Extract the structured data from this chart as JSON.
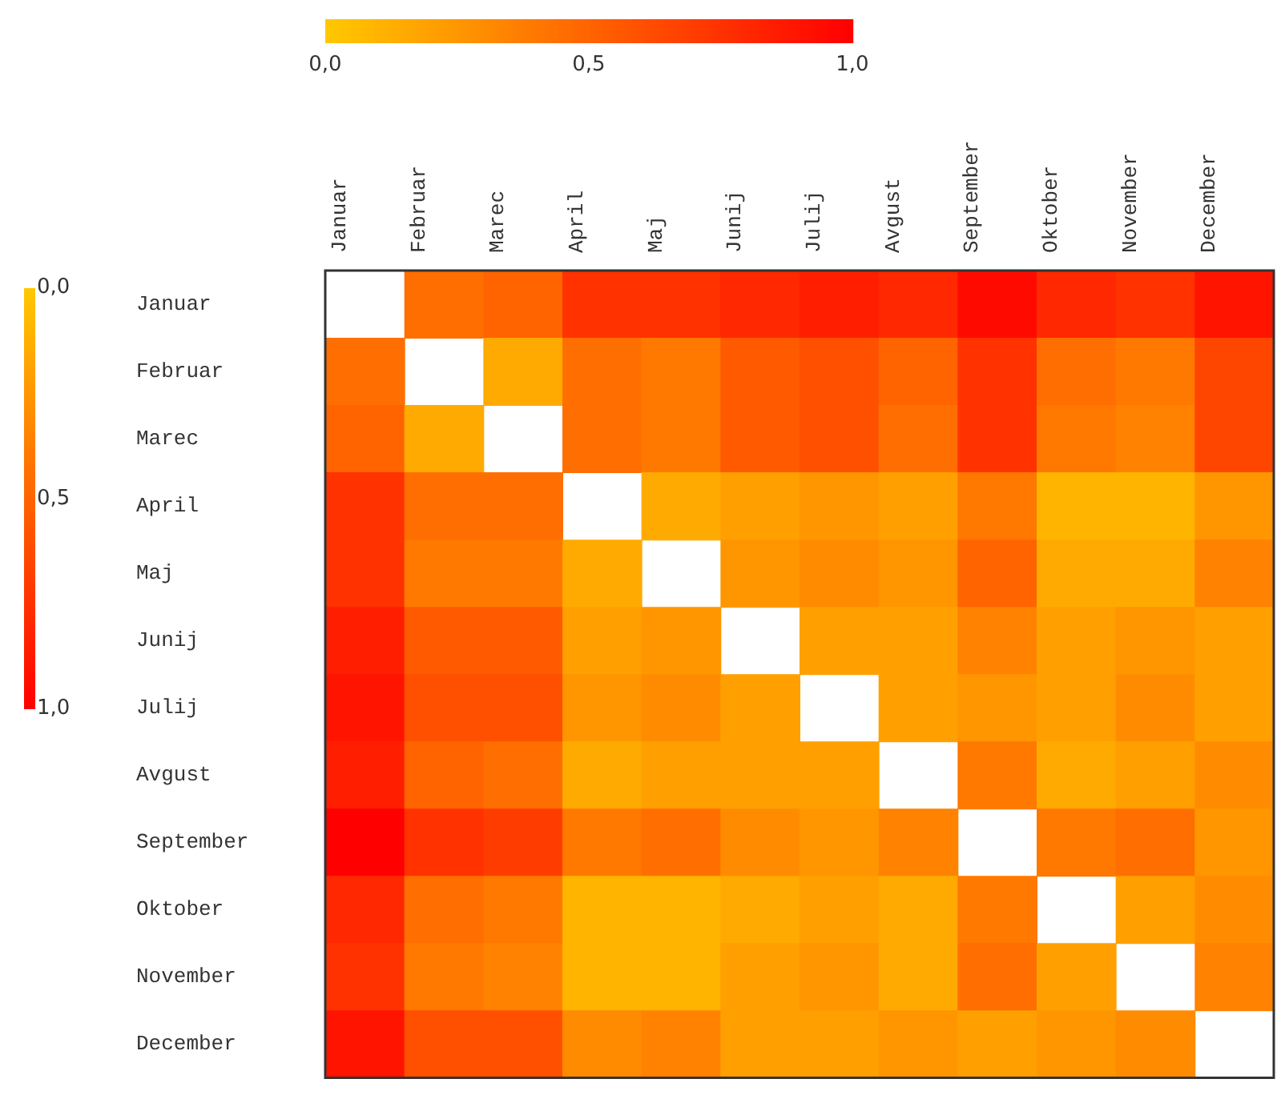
{
  "chart_data": {
    "type": "heatmap",
    "categories": [
      "Januar",
      "Februar",
      "Marec",
      "April",
      "Maj",
      "Junij",
      "Julij",
      "Avgust",
      "September",
      "Oktober",
      "November",
      "December"
    ],
    "y_categories": [
      "Januar",
      "Februar",
      "Marec",
      "April",
      "Maj",
      "Junij",
      "Julij",
      "Avgust",
      "September",
      "Oktober",
      "November",
      "December"
    ],
    "cells": [
      [
        null,
        0.45,
        0.5,
        0.75,
        0.75,
        0.8,
        0.85,
        0.8,
        0.95,
        0.8,
        0.75,
        0.9
      ],
      [
        0.45,
        null,
        0.15,
        0.45,
        0.4,
        0.55,
        0.6,
        0.5,
        0.75,
        0.45,
        0.4,
        0.65
      ],
      [
        0.5,
        0.15,
        null,
        0.45,
        0.4,
        0.55,
        0.6,
        0.45,
        0.75,
        0.4,
        0.35,
        0.65
      ],
      [
        0.75,
        0.45,
        0.45,
        null,
        0.15,
        0.2,
        0.25,
        0.2,
        0.4,
        0.1,
        0.1,
        0.25
      ],
      [
        0.75,
        0.4,
        0.4,
        0.15,
        null,
        0.25,
        0.3,
        0.25,
        0.5,
        0.15,
        0.15,
        0.35
      ],
      [
        0.85,
        0.55,
        0.55,
        0.2,
        0.25,
        null,
        0.2,
        0.2,
        0.35,
        0.2,
        0.25,
        0.2
      ],
      [
        0.9,
        0.6,
        0.6,
        0.25,
        0.3,
        0.2,
        null,
        0.2,
        0.25,
        0.2,
        0.3,
        0.2
      ],
      [
        0.85,
        0.5,
        0.45,
        0.15,
        0.2,
        0.2,
        0.2,
        null,
        0.4,
        0.15,
        0.2,
        0.3
      ],
      [
        1.0,
        0.75,
        0.7,
        0.4,
        0.45,
        0.3,
        0.25,
        0.35,
        null,
        0.4,
        0.45,
        0.25
      ],
      [
        0.8,
        0.45,
        0.4,
        0.1,
        0.1,
        0.15,
        0.2,
        0.15,
        0.4,
        null,
        0.2,
        0.3
      ],
      [
        0.75,
        0.4,
        0.35,
        0.1,
        0.1,
        0.2,
        0.25,
        0.15,
        0.45,
        0.2,
        null,
        0.35
      ],
      [
        0.9,
        0.6,
        0.6,
        0.3,
        0.35,
        0.2,
        0.2,
        0.25,
        0.2,
        0.25,
        0.3,
        null
      ]
    ],
    "clim": [
      0,
      1
    ],
    "cticks": [
      {
        "value": 0,
        "label": "0,0"
      },
      {
        "value": 0.5,
        "label": "0,5"
      },
      {
        "value": 1,
        "label": "1,0"
      }
    ]
  }
}
